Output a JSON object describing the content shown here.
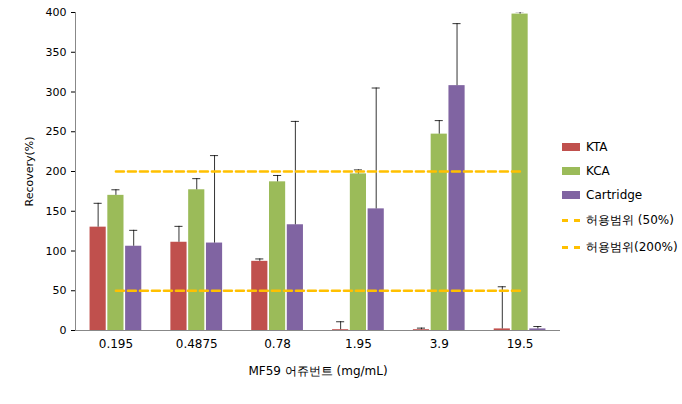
{
  "chart_data": {
    "type": "bar",
    "xlabel": "MF59 어쥬번트 (mg/mL)",
    "ylabel": "Recovery(%)",
    "categories": [
      "0.195",
      "0.4875",
      "0.78",
      "1.95",
      "3.9",
      "19.5"
    ],
    "series": [
      {
        "name": "KTA",
        "color": "#C0504D",
        "values": [
          130,
          111,
          87,
          1,
          1,
          2
        ],
        "errors": [
          30,
          20,
          3,
          10,
          2,
          53
        ]
      },
      {
        "name": "KCA",
        "color": "#9BBB59",
        "values": [
          170,
          177,
          187,
          197,
          247,
          398
        ],
        "errors": [
          7,
          14,
          8,
          5,
          17,
          3
        ]
      },
      {
        "name": "Cartridge",
        "color": "#8064A2",
        "values": [
          106,
          110,
          133,
          153,
          308,
          2
        ],
        "errors": [
          20,
          110,
          130,
          152,
          78,
          3
        ]
      },
      {
        "name": "허용범위 (50%)",
        "type": "line",
        "line_style": "dashed",
        "color": "#FFC000",
        "values": [
          50,
          50,
          50,
          50,
          50,
          50
        ]
      },
      {
        "name": "허용범위(200%)",
        "type": "line",
        "line_style": "dashed",
        "color": "#FFC000",
        "values": [
          200,
          200,
          200,
          200,
          200,
          200
        ]
      }
    ],
    "ylim": [
      0,
      400
    ],
    "yticks": [
      0,
      50,
      100,
      150,
      200,
      250,
      300,
      350,
      400
    ],
    "legend": "right"
  }
}
